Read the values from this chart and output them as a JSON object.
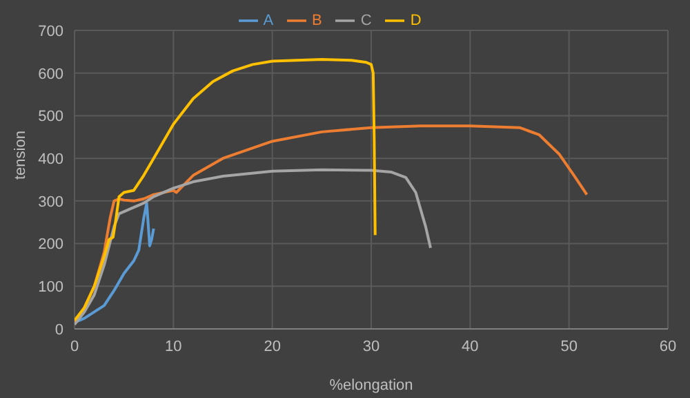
{
  "chart_data": {
    "type": "line",
    "xlabel": "%elongation",
    "ylabel": "tension",
    "xlim": [
      0,
      60
    ],
    "xticks": [
      0,
      10,
      20,
      30,
      40,
      50,
      60
    ],
    "ylim": [
      0,
      700
    ],
    "yticks": [
      0,
      100,
      200,
      300,
      400,
      500,
      600,
      700
    ],
    "grid": true,
    "legend": "top",
    "marker": "none",
    "line_style": "solid",
    "series": [
      {
        "name": "A",
        "color": "#5b9bd5",
        "x": [
          0,
          1,
          2,
          3,
          4,
          5,
          6,
          6.5,
          7,
          7.3,
          7.6,
          7.8,
          8
        ],
        "values": [
          15,
          25,
          40,
          55,
          90,
          130,
          160,
          185,
          260,
          295,
          195,
          210,
          235
        ]
      },
      {
        "name": "B",
        "color": "#ed7d31",
        "x": [
          0,
          1,
          2,
          3,
          3.6,
          4,
          4.5,
          5,
          6,
          7,
          8,
          10,
          10.3,
          12,
          15,
          20,
          25,
          30,
          35,
          40,
          45,
          47,
          49,
          50.5,
          51.8
        ],
        "values": [
          15,
          50,
          100,
          180,
          260,
          300,
          305,
          302,
          300,
          305,
          315,
          325,
          320,
          360,
          400,
          440,
          462,
          472,
          476,
          476,
          472,
          455,
          410,
          360,
          315
        ]
      },
      {
        "name": "C",
        "color": "#a5a5a5",
        "x": [
          0,
          1,
          2,
          3,
          4,
          4.5,
          5.5,
          7,
          8,
          10,
          12,
          15,
          20,
          25,
          30,
          32,
          33.5,
          34.5,
          35.5,
          36
        ],
        "values": [
          10,
          40,
          80,
          150,
          240,
          270,
          280,
          295,
          310,
          330,
          345,
          358,
          370,
          373,
          372,
          368,
          355,
          320,
          240,
          190
        ]
      },
      {
        "name": "D",
        "color": "#ffc000",
        "x": [
          0,
          1,
          2,
          3,
          3.5,
          3.9,
          4.2,
          4.5,
          5,
          6,
          7,
          8,
          9,
          10,
          12,
          14,
          16,
          18,
          20,
          25,
          28,
          29.5,
          30,
          30.2,
          30.3,
          30.4
        ],
        "values": [
          20,
          50,
          100,
          170,
          210,
          215,
          260,
          310,
          320,
          325,
          360,
          400,
          440,
          480,
          540,
          580,
          605,
          620,
          628,
          632,
          630,
          625,
          620,
          600,
          450,
          220
        ]
      }
    ]
  }
}
